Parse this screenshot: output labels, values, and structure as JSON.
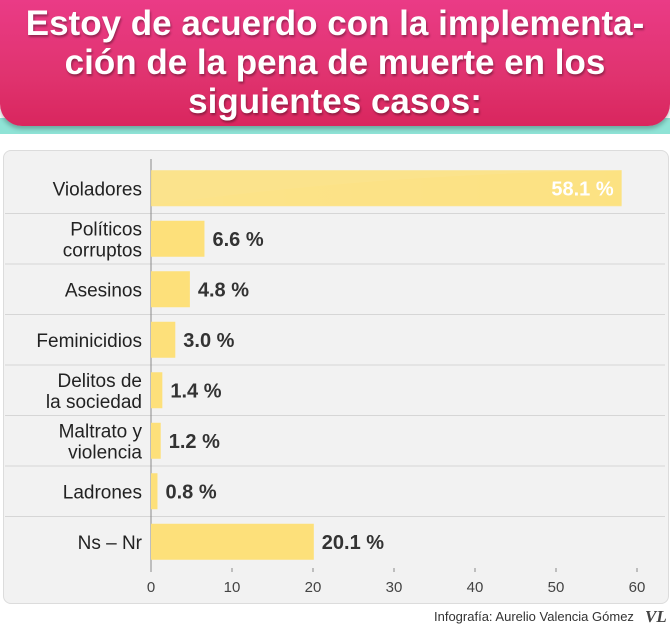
{
  "header": {
    "title": "Estoy de acuerdo con la implementa-\nción de la pena de muerte en los\nsiguientes casos:"
  },
  "chart_data": {
    "type": "bar",
    "orientation": "horizontal",
    "title": "Estoy de acuerdo con la implementación de la pena de muerte en los siguientes casos:",
    "categories": [
      [
        "Violadores"
      ],
      [
        "Políticos",
        "corruptos"
      ],
      [
        "Asesinos"
      ],
      [
        "Feminicidios"
      ],
      [
        "Delitos de",
        "la sociedad"
      ],
      [
        "Maltrato y",
        "violencia"
      ],
      [
        "Ladrones"
      ],
      [
        "Ns – Nr"
      ]
    ],
    "values": [
      58.1,
      6.6,
      4.8,
      3.0,
      1.4,
      1.2,
      0.8,
      20.1
    ],
    "value_labels": [
      "58.1 %",
      "6.6 %",
      "4.8 %",
      "3.0 %",
      "1.4 %",
      "1.2 %",
      "0.8 %",
      "20.1 %"
    ],
    "xlim": [
      0,
      60
    ],
    "xticks": [
      0,
      10,
      20,
      30,
      40,
      50,
      60
    ],
    "xlabel": "",
    "ylabel": "",
    "bar_color": "#fde07a",
    "highlight_label_color": "#ffffff",
    "label_color": "#333333"
  },
  "footer": {
    "credit": "Infografía: Aurelio Valencia Gómez",
    "logo_text": "VL"
  }
}
